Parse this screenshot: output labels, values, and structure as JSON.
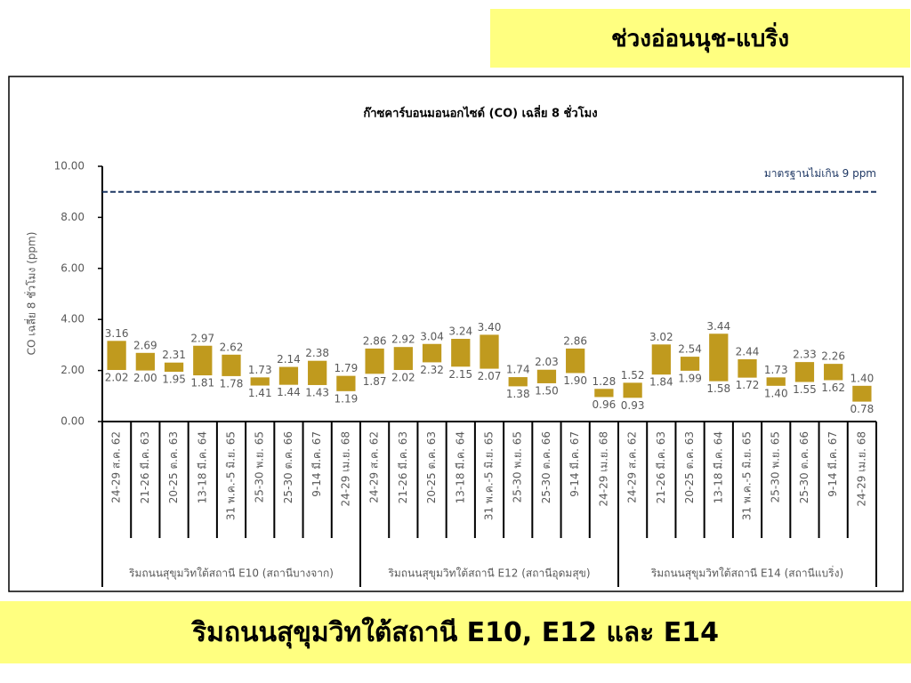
{
  "header": {
    "title": "ช่วงอ่อนนุช-แบริ่ง"
  },
  "chart_data": {
    "type": "floating_bar",
    "title": "ก๊าซคาร์บอนมอนอกไซด์ (CO) เฉลี่ย 8 ชั่วโมง",
    "ylabel": "CO เฉลี่ย 8 ชั่วโมง (ppm)",
    "color": "#c09a1e",
    "ylim": [
      0,
      10
    ],
    "yticks": [
      {
        "value": 0,
        "label": "0.00"
      },
      {
        "value": 2,
        "label": "2.00"
      },
      {
        "value": 4,
        "label": "4.00"
      },
      {
        "value": 6,
        "label": "6.00"
      },
      {
        "value": 8,
        "label": "8.00"
      },
      {
        "value": 10,
        "label": "10.00"
      }
    ],
    "standard": {
      "value": 9,
      "label": "มาตรฐานไม่เกิน 9 ppm",
      "color": "#1f3864"
    },
    "groups": [
      {
        "name": "ริมถนนสุขุมวิทใต้สถานี E10 (สถานีบางจาก)",
        "categories": [
          "24-29 ส.ค. 62",
          "21-26 มี.ค. 63",
          "20-25 ต.ค. 63",
          "13-18 มี.ค. 64",
          "31 พ.ค.-5 มิ.ย. 65",
          "25-30 พ.ย. 65",
          "25-30 ต.ค. 66",
          "9-14 มี.ค. 67",
          "24-29 เม.ย. 68"
        ],
        "high": [
          3.16,
          2.69,
          2.31,
          2.97,
          2.62,
          1.73,
          2.14,
          2.38,
          1.79
        ],
        "high_labels": [
          "3.16",
          "2.69",
          "2.31",
          "2.97",
          "2.62",
          "1.73",
          "2.14",
          "2.38",
          "1.79"
        ],
        "low": [
          2.02,
          2.0,
          1.95,
          1.81,
          1.78,
          1.41,
          1.44,
          1.43,
          1.19
        ],
        "low_labels": [
          "2.02",
          "2.00",
          "1.95",
          "1.81",
          "1.78",
          "1.41",
          "1.44",
          "1.43",
          "1.19"
        ]
      },
      {
        "name": "ริมถนนสุขุมวิทใต้สถานี E12 (สถานีอุดมสุข)",
        "categories": [
          "24-29 ส.ค. 62",
          "21-26 มี.ค. 63",
          "20-25 ต.ค. 63",
          "13-18 มี.ค. 64",
          "31 พ.ค.-5 มิ.ย. 65",
          "25-30 พ.ย. 65",
          "25-30 ต.ค. 66",
          "9-14 มี.ค. 67",
          "24-29 เม.ย. 68"
        ],
        "high": [
          2.86,
          2.92,
          3.04,
          3.24,
          3.4,
          1.74,
          2.03,
          2.86,
          1.28
        ],
        "high_labels": [
          "2.86",
          "2.92",
          "3.04",
          "3.24",
          "3.40",
          "1.74",
          "2.03",
          "2.86",
          "1.28"
        ],
        "low": [
          1.87,
          2.02,
          2.32,
          2.15,
          2.07,
          1.38,
          1.5,
          1.9,
          0.96
        ],
        "low_labels": [
          "1.87",
          "2.02",
          "2.32",
          "2.15",
          "2.07",
          "1.38",
          "1.50",
          "1.90",
          "0.96"
        ]
      },
      {
        "name": "ริมถนนสุขุมวิทใต้สถานี E14 (สถานีแบริ่ง)",
        "categories": [
          "24-29 ส.ค. 62",
          "21-26 มี.ค. 63",
          "20-25 ต.ค. 63",
          "13-18 มี.ค. 64",
          "31 พ.ค.-5 มิ.ย. 65",
          "25-30 พ.ย. 65",
          "25-30 ต.ค. 66",
          "9-14 มี.ค. 67",
          "24-29 เม.ย. 68"
        ],
        "high": [
          1.52,
          3.02,
          2.54,
          3.44,
          2.44,
          1.73,
          2.33,
          2.26,
          1.4
        ],
        "high_labels": [
          "1.52",
          "3.02",
          "2.54",
          "3.44",
          "2.44",
          "1.73",
          "2.33",
          "2.26",
          "1.40"
        ],
        "low": [
          0.93,
          1.84,
          1.99,
          1.58,
          1.72,
          1.4,
          1.55,
          1.62,
          0.78
        ],
        "low_labels": [
          "0.93",
          "1.84",
          "1.99",
          "1.58",
          "1.72",
          "1.40",
          "1.55",
          "1.62",
          "0.78"
        ]
      }
    ]
  },
  "footer": {
    "title": "ริมถนนสุขุมวิทใต้สถานี E10, E12 และ E14"
  }
}
